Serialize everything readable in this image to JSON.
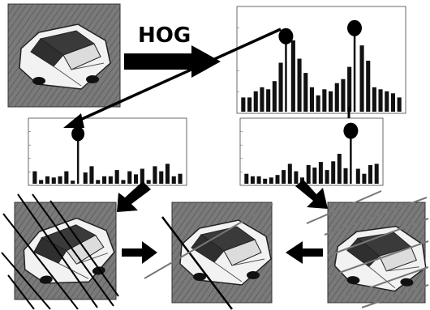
{
  "diagram": {
    "label": "HOG",
    "colors": {
      "ink": "#000000",
      "photo_bg": "#6e6e6e",
      "car": "#f2f2f2",
      "bar": "#111111",
      "frame": "#333333"
    }
  },
  "chart_data": [
    {
      "type": "bar",
      "id": "hog-histogram-main",
      "values": [
        14,
        14,
        20,
        24,
        22,
        30,
        48,
        74,
        70,
        52,
        38,
        24,
        16,
        22,
        20,
        28,
        32,
        44,
        82,
        65,
        50,
        24,
        22,
        20,
        18,
        14
      ],
      "peaks": [
        7,
        18
      ],
      "ylim": [
        0,
        100
      ]
    },
    {
      "type": "bar",
      "id": "hog-histogram-left",
      "values": [
        20,
        6,
        12,
        10,
        12,
        20,
        5,
        80,
        18,
        28,
        6,
        12,
        12,
        22,
        6,
        20,
        15,
        24,
        6,
        28,
        20,
        32,
        12,
        16
      ],
      "peaks": [
        7
      ],
      "ylim": [
        0,
        100
      ]
    },
    {
      "type": "bar",
      "id": "hog-histogram-right",
      "values": [
        16,
        12,
        12,
        8,
        10,
        14,
        22,
        32,
        20,
        10,
        30,
        26,
        35,
        22,
        36,
        48,
        25,
        85,
        24,
        16,
        30,
        32
      ],
      "peaks": [
        17
      ],
      "ylim": [
        0,
        100
      ]
    }
  ]
}
